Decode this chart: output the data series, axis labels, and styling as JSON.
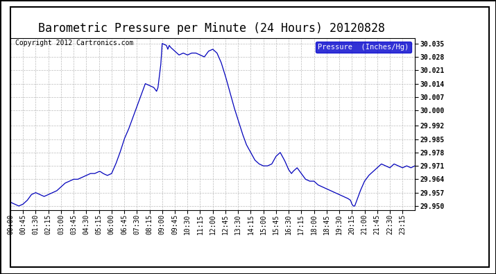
{
  "title": "Barometric Pressure per Minute (24 Hours) 20120828",
  "copyright": "Copyright 2012 Cartronics.com",
  "legend_label": "Pressure  (Inches/Hg)",
  "line_color": "#0000bb",
  "background_color": "#ffffff",
  "plot_bg_color": "#ffffff",
  "grid_color": "#bbbbbb",
  "ylim": [
    29.948,
    30.0378
  ],
  "yticks": [
    29.95,
    29.957,
    29.964,
    29.971,
    29.978,
    29.985,
    29.992,
    30.0,
    30.007,
    30.014,
    30.021,
    30.028,
    30.035
  ],
  "xtick_labels": [
    "00:00",
    "00:45",
    "01:30",
    "02:15",
    "03:00",
    "03:45",
    "04:30",
    "05:15",
    "06:00",
    "06:45",
    "07:30",
    "08:15",
    "09:00",
    "09:45",
    "10:30",
    "11:15",
    "12:00",
    "12:45",
    "13:30",
    "14:15",
    "15:00",
    "15:45",
    "16:30",
    "17:15",
    "18:00",
    "18:45",
    "19:30",
    "20:15",
    "21:00",
    "21:45",
    "22:30",
    "23:15"
  ],
  "title_fontsize": 12,
  "tick_fontsize": 7,
  "copyright_fontsize": 7,
  "legend_fontsize": 7.5,
  "pressure_keypoints": [
    [
      0,
      29.952
    ],
    [
      15,
      29.951
    ],
    [
      30,
      29.95
    ],
    [
      45,
      29.951
    ],
    [
      60,
      29.953
    ],
    [
      75,
      29.956
    ],
    [
      90,
      29.957
    ],
    [
      105,
      29.956
    ],
    [
      120,
      29.955
    ],
    [
      135,
      29.956
    ],
    [
      150,
      29.957
    ],
    [
      165,
      29.958
    ],
    [
      180,
      29.96
    ],
    [
      195,
      29.962
    ],
    [
      210,
      29.963
    ],
    [
      225,
      29.964
    ],
    [
      240,
      29.964
    ],
    [
      255,
      29.965
    ],
    [
      270,
      29.966
    ],
    [
      285,
      29.967
    ],
    [
      300,
      29.967
    ],
    [
      315,
      29.968
    ],
    [
      320,
      29.968
    ],
    [
      330,
      29.967
    ],
    [
      345,
      29.966
    ],
    [
      360,
      29.967
    ],
    [
      375,
      29.972
    ],
    [
      390,
      29.978
    ],
    [
      405,
      29.985
    ],
    [
      420,
      29.99
    ],
    [
      435,
      29.996
    ],
    [
      450,
      30.002
    ],
    [
      465,
      30.008
    ],
    [
      480,
      30.014
    ],
    [
      495,
      30.013
    ],
    [
      510,
      30.012
    ],
    [
      515,
      30.011
    ],
    [
      520,
      30.01
    ],
    [
      525,
      30.012
    ],
    [
      530,
      30.018
    ],
    [
      535,
      30.024
    ],
    [
      540,
      30.035
    ],
    [
      555,
      30.034
    ],
    [
      560,
      30.032
    ],
    [
      565,
      30.034
    ],
    [
      570,
      30.033
    ],
    [
      585,
      30.031
    ],
    [
      600,
      30.029
    ],
    [
      615,
      30.03
    ],
    [
      630,
      30.029
    ],
    [
      645,
      30.03
    ],
    [
      660,
      30.03
    ],
    [
      675,
      30.029
    ],
    [
      690,
      30.028
    ],
    [
      705,
      30.031
    ],
    [
      720,
      30.032
    ],
    [
      735,
      30.03
    ],
    [
      750,
      30.025
    ],
    [
      765,
      30.018
    ],
    [
      780,
      30.01
    ],
    [
      795,
      30.002
    ],
    [
      810,
      29.995
    ],
    [
      825,
      29.988
    ],
    [
      840,
      29.982
    ],
    [
      855,
      29.978
    ],
    [
      870,
      29.974
    ],
    [
      885,
      29.972
    ],
    [
      900,
      29.971
    ],
    [
      915,
      29.971
    ],
    [
      930,
      29.972
    ],
    [
      945,
      29.976
    ],
    [
      960,
      29.978
    ],
    [
      975,
      29.974
    ],
    [
      990,
      29.969
    ],
    [
      1000,
      29.967
    ],
    [
      1005,
      29.968
    ],
    [
      1020,
      29.97
    ],
    [
      1035,
      29.967
    ],
    [
      1050,
      29.964
    ],
    [
      1065,
      29.963
    ],
    [
      1080,
      29.963
    ],
    [
      1095,
      29.961
    ],
    [
      1110,
      29.96
    ],
    [
      1125,
      29.959
    ],
    [
      1140,
      29.958
    ],
    [
      1155,
      29.957
    ],
    [
      1170,
      29.956
    ],
    [
      1185,
      29.955
    ],
    [
      1200,
      29.954
    ],
    [
      1210,
      29.953
    ],
    [
      1215,
      29.951
    ],
    [
      1220,
      29.95
    ],
    [
      1225,
      29.95
    ],
    [
      1230,
      29.952
    ],
    [
      1245,
      29.958
    ],
    [
      1260,
      29.963
    ],
    [
      1275,
      29.966
    ],
    [
      1290,
      29.968
    ],
    [
      1305,
      29.97
    ],
    [
      1320,
      29.972
    ],
    [
      1335,
      29.971
    ],
    [
      1350,
      29.97
    ],
    [
      1365,
      29.972
    ],
    [
      1380,
      29.971
    ],
    [
      1395,
      29.97
    ],
    [
      1410,
      29.971
    ],
    [
      1425,
      29.97
    ],
    [
      1439,
      29.971
    ]
  ]
}
